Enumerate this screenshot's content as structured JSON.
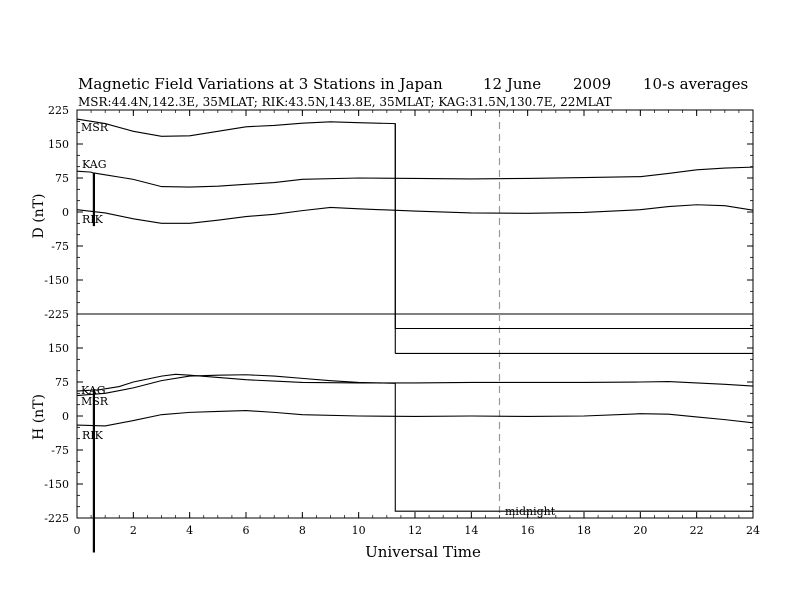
{
  "header": {
    "title": "Magnetic Field Variations at 3 Stations in Japan",
    "date": "12 June",
    "year": "2009",
    "averaging": "10-s averages",
    "stations_line": "MSR:44.4N,142.3E, 35MLAT;  RIK:43.5N,143.8E, 35MLAT;  KAG:31.5N,130.7E, 22MLAT"
  },
  "chart_data": [
    {
      "type": "line",
      "panel": "D",
      "ylabel": "D (nT)",
      "ylim": [
        -225,
        225
      ],
      "yticks": [
        225,
        150,
        75,
        0,
        -75,
        -150,
        -225
      ],
      "ytick_labels": [
        "225",
        "150",
        "75",
        "0",
        "-75",
        "-150",
        "-225"
      ],
      "xlim": [
        0,
        24
      ],
      "series": [
        {
          "name": "MSR",
          "x": [
            0,
            1,
            2,
            3,
            4,
            5,
            6,
            7,
            8,
            9,
            10,
            11.3,
            11.3,
            24
          ],
          "y": [
            205,
            195,
            178,
            167,
            168,
            178,
            188,
            191,
            196,
            199,
            197,
            195,
            -257,
            -257
          ]
        },
        {
          "name": "KAG",
          "x": [
            0,
            0.5,
            0.58,
            0.58,
            0.62,
            0.62,
            0.7,
            1,
            2,
            3,
            4,
            5,
            6,
            7,
            8,
            10,
            12,
            14,
            16,
            18,
            20,
            21,
            22,
            23,
            24
          ],
          "y": [
            90,
            88,
            86,
            -30,
            -30,
            86,
            85,
            82,
            72,
            56,
            55,
            57,
            61,
            65,
            72,
            75,
            74,
            73,
            74,
            76,
            78,
            85,
            93,
            97,
            99
          ]
        },
        {
          "name": "RIK",
          "x": [
            0,
            1,
            2,
            3,
            4,
            5,
            6,
            7,
            8,
            9,
            10,
            12,
            14,
            16,
            18,
            20,
            21,
            22,
            23,
            24
          ],
          "y": [
            5,
            -2,
            -15,
            -25,
            -25,
            -18,
            -10,
            -5,
            3,
            10,
            7,
            2,
            -2,
            -3,
            -1,
            5,
            12,
            16,
            14,
            4
          ]
        }
      ]
    },
    {
      "type": "line",
      "panel": "H",
      "ylabel": "H (nT)",
      "ylim": [
        -225,
        225
      ],
      "yticks": [
        150,
        75,
        0,
        -75,
        -150,
        -225
      ],
      "ytick_labels": [
        "150",
        "75",
        "0",
        "-75",
        "-150",
        "-225"
      ],
      "xlim": [
        0,
        24
      ],
      "xticks": [
        0,
        2,
        4,
        6,
        8,
        10,
        12,
        14,
        16,
        18,
        20,
        22,
        24
      ],
      "xtick_labels": [
        "0",
        "2",
        "4",
        "6",
        "8",
        "10",
        "12",
        "14",
        "16",
        "18",
        "20",
        "22",
        "24"
      ],
      "xlabel": "Universal Time",
      "series": [
        {
          "name": "KAG",
          "x": [
            0,
            0.5,
            0.58,
            0.58,
            0.62,
            0.62,
            0.7,
            1,
            1.5,
            2,
            3,
            3.5,
            4,
            5,
            6,
            7,
            8,
            10,
            12,
            14,
            16,
            18,
            20,
            21,
            22,
            23,
            24
          ],
          "y": [
            55,
            57,
            58,
            -300,
            -300,
            58,
            57,
            60,
            65,
            75,
            88,
            92,
            90,
            85,
            80,
            77,
            74,
            73,
            73,
            74,
            74,
            74,
            75,
            76,
            73,
            70,
            66
          ],
          "extend_panel": false
        },
        {
          "name": "MSR",
          "x": [
            0,
            1,
            2,
            3,
            4,
            5,
            6,
            7,
            8,
            9,
            10,
            11.3,
            11.3,
            24
          ],
          "y": [
            45,
            50,
            62,
            78,
            88,
            90,
            91,
            88,
            83,
            78,
            74,
            72,
            -210,
            -210
          ]
        },
        {
          "name": "RIK",
          "x": [
            0,
            1,
            2,
            3,
            4,
            5,
            6,
            7,
            8,
            10,
            12,
            14,
            16,
            18,
            20,
            21,
            22,
            23,
            24
          ],
          "y": [
            -20,
            -22,
            -10,
            3,
            8,
            10,
            12,
            8,
            3,
            0,
            -1,
            0,
            -1,
            0,
            5,
            4,
            -2,
            -8,
            -15
          ]
        }
      ],
      "upper_trace": {
        "name": "MSR",
        "x": [
          11.3,
          24
        ],
        "y": [
          138,
          138
        ]
      }
    }
  ],
  "annotations": {
    "midnight_line_x": 15,
    "midnight_label": "midnight"
  },
  "colors": {
    "line": "#000000",
    "dashed": "#999999",
    "background": "#ffffff"
  }
}
